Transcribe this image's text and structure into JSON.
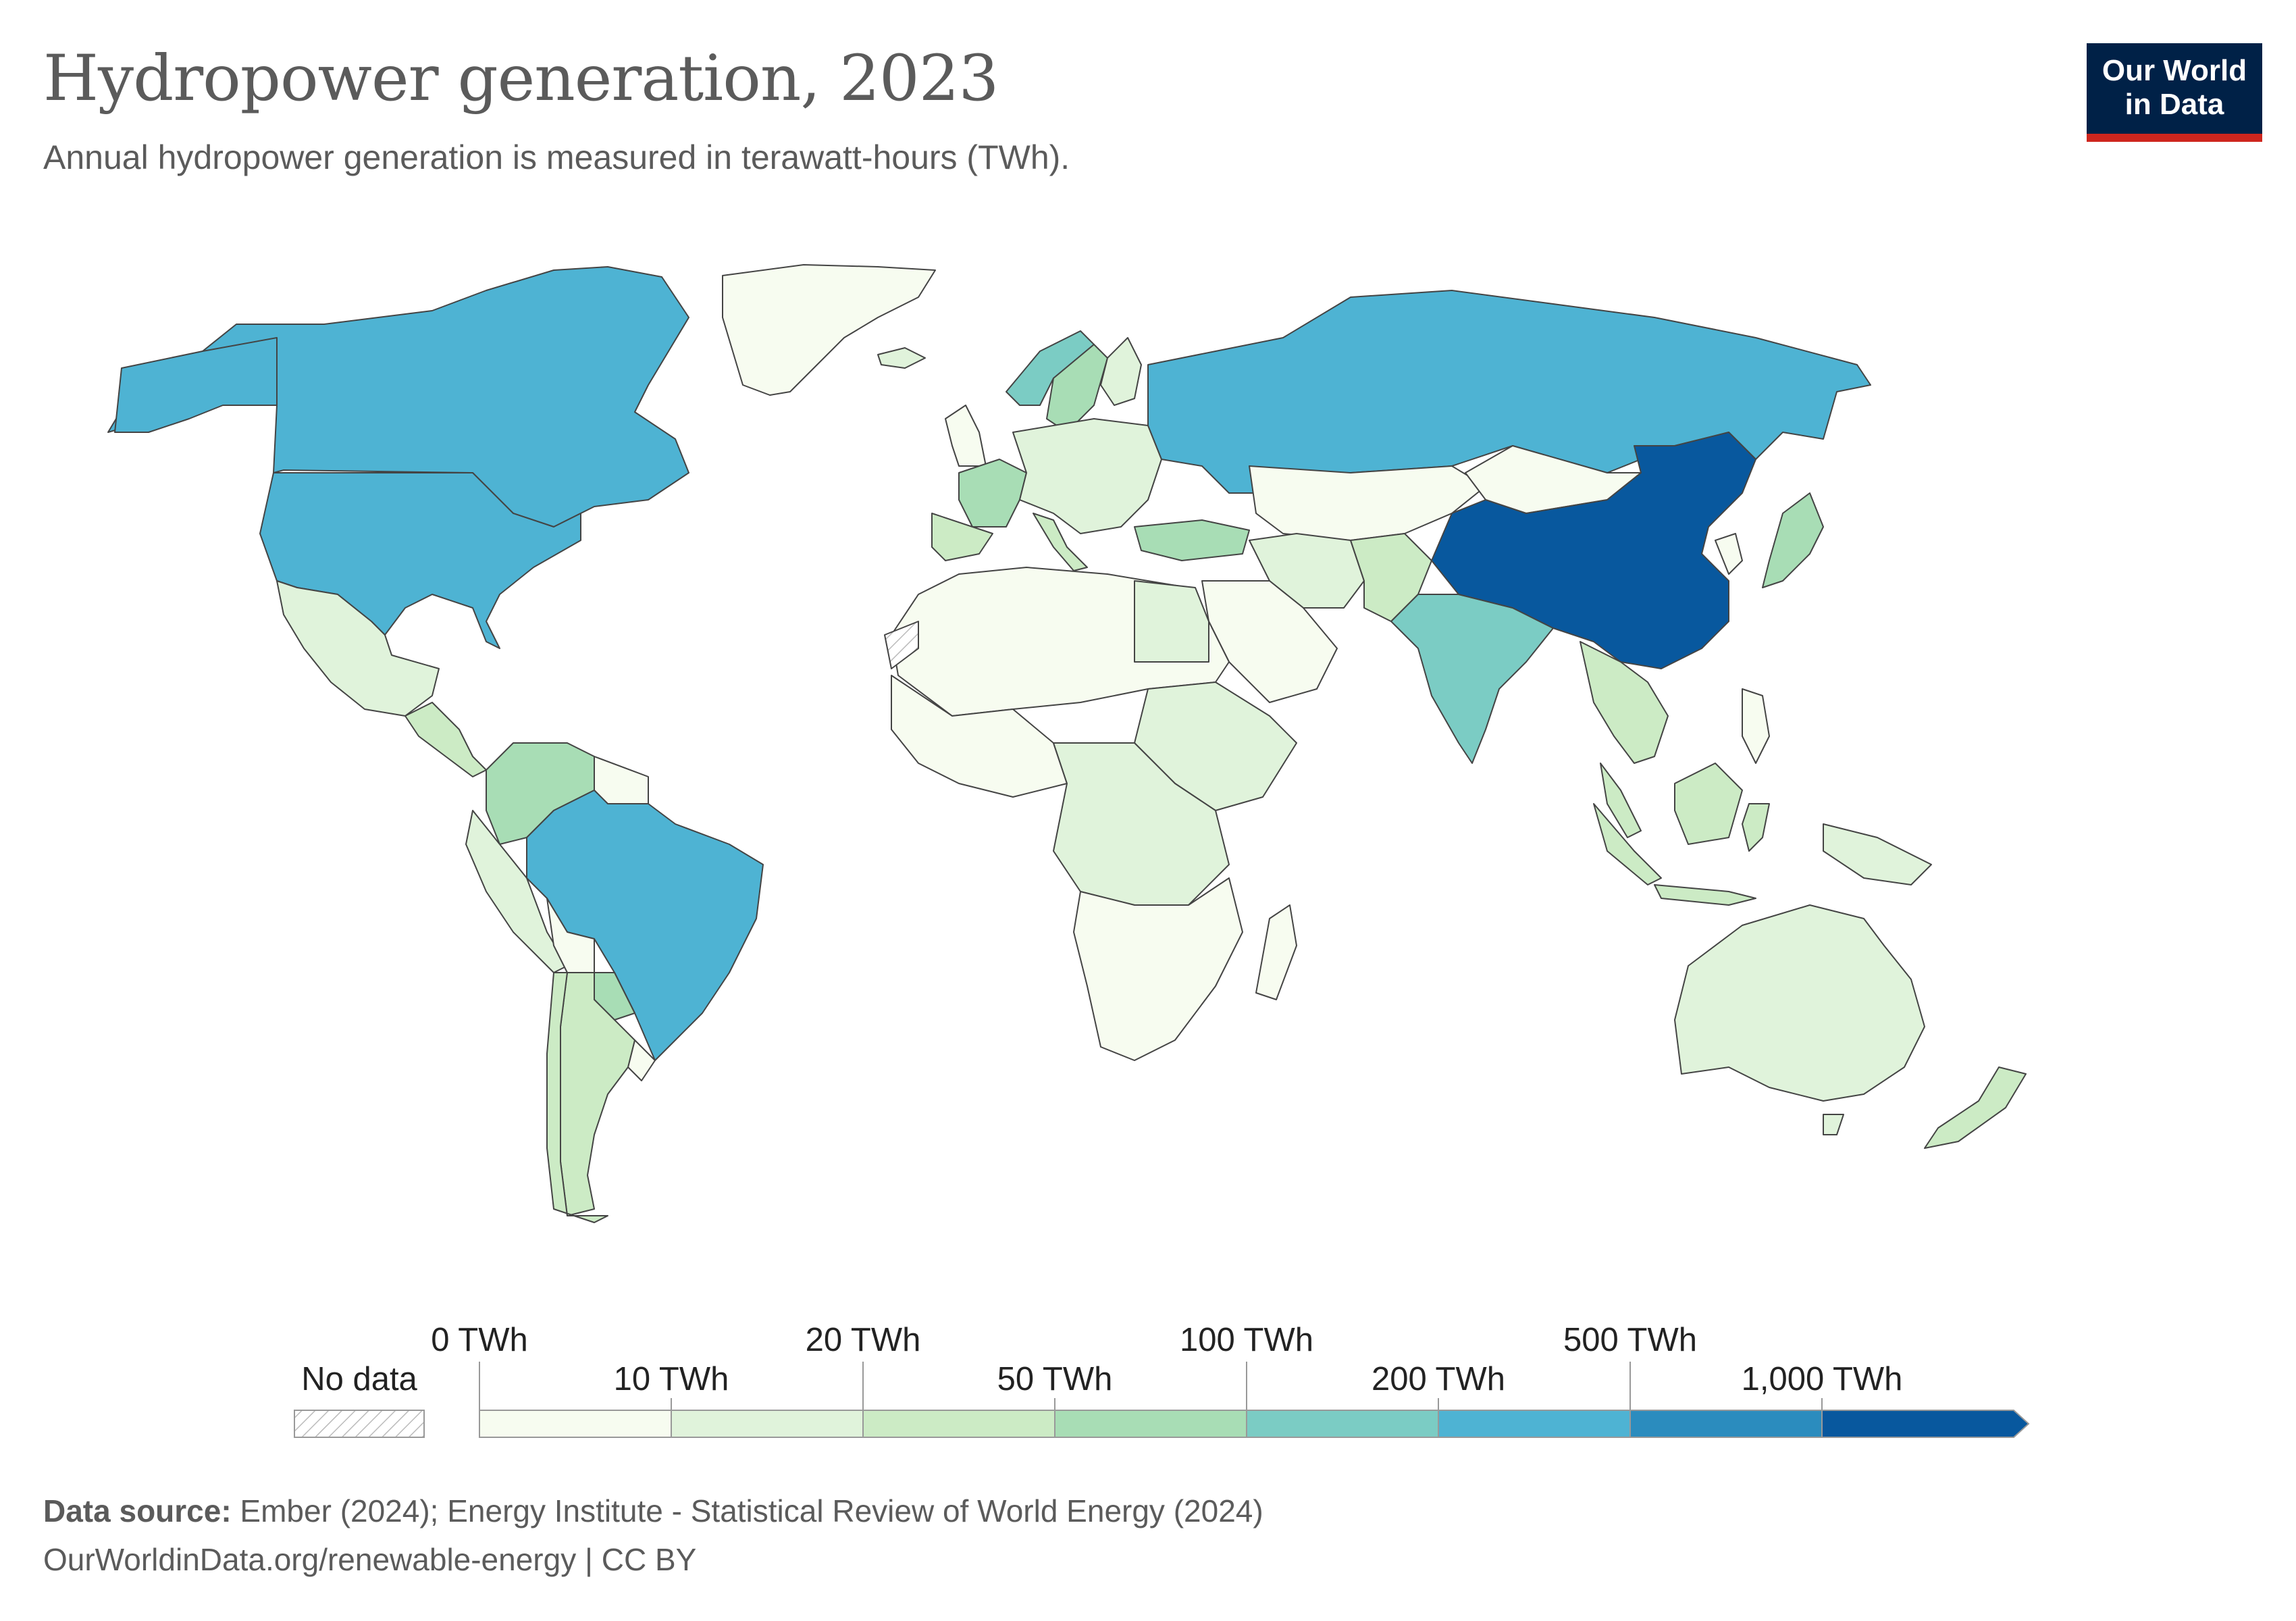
{
  "header": {
    "title": "Hydropower generation, 2023",
    "subtitle": "Annual hydropower generation is measured in terawatt-hours (TWh)."
  },
  "logo": {
    "line1": "Our World",
    "line2": "in Data"
  },
  "legend": {
    "no_data": "No data",
    "upper_labels": [
      "0 TWh",
      "20 TWh",
      "100 TWh",
      "500 TWh"
    ],
    "lower_labels": [
      "10 TWh",
      "50 TWh",
      "200 TWh",
      "1,000 TWh"
    ],
    "bins": [
      {
        "from": 0,
        "to": 10,
        "color": "#f7fcf0"
      },
      {
        "from": 10,
        "to": 20,
        "color": "#e0f3db"
      },
      {
        "from": 20,
        "to": 50,
        "color": "#ccebc5"
      },
      {
        "from": 50,
        "to": 100,
        "color": "#a8ddb5"
      },
      {
        "from": 100,
        "to": 200,
        "color": "#7bccc4"
      },
      {
        "from": 200,
        "to": 500,
        "color": "#4eb3d3"
      },
      {
        "from": 500,
        "to": 1000,
        "color": "#2b8cbe"
      },
      {
        "from": 1000,
        "to": null,
        "color": "#08589e"
      }
    ]
  },
  "footer": {
    "source_label": "Data source:",
    "source_text": " Ember (2024); Energy Institute - Statistical Review of World Energy (2024)",
    "url_text": "OurWorldinData.org/renewable-energy | CC BY"
  },
  "colors": {
    "bin0": "#f7fcf0",
    "bin1": "#e0f3db",
    "bin2": "#ccebc5",
    "bin3": "#a8ddb5",
    "bin4": "#7bccc4",
    "bin5": "#4eb3d3",
    "bin6": "#2b8cbe",
    "bin7": "#08589e",
    "border": "#444444"
  }
}
